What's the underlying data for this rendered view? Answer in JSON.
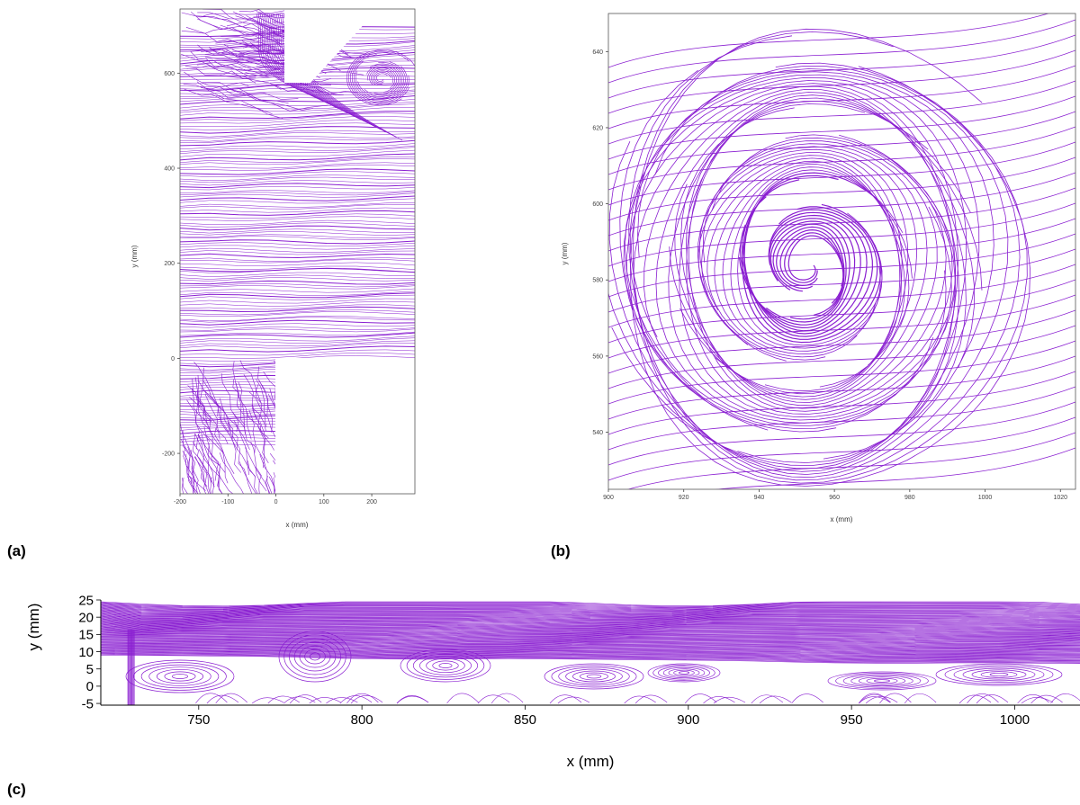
{
  "figure": {
    "line_color": "#8a1fd1",
    "panels": {
      "a": "(a)",
      "b": "(b)",
      "c": "(c)"
    }
  },
  "chart_data": [
    {
      "id": "a",
      "type": "streamline",
      "xlabel": "x (mm)",
      "ylabel": "y (mm)",
      "xlim": [
        -200,
        290
      ],
      "ylim": [
        -285,
        735
      ],
      "xticks": [
        -200,
        -100,
        0,
        100,
        200
      ],
      "yticks": [
        -200,
        0,
        200,
        400,
        600
      ],
      "grid": false
    },
    {
      "id": "b",
      "type": "streamline",
      "xlabel": "x (mm)",
      "ylabel": "y (mm)",
      "xlim": [
        900,
        1024
      ],
      "ylim": [
        525,
        650
      ],
      "xticks": [
        900,
        920,
        940,
        960,
        980,
        1000,
        1020
      ],
      "yticks": [
        540,
        560,
        580,
        600,
        620,
        640
      ],
      "vortex_center": [
        952,
        584
      ],
      "grid": false
    },
    {
      "id": "c",
      "type": "streamline",
      "xlabel": "x (mm)",
      "ylabel": "y (mm)",
      "xlim": [
        720,
        1020
      ],
      "ylim": [
        -5.5,
        25
      ],
      "xticks": [
        750,
        800,
        850,
        900,
        950,
        1000
      ],
      "yticks": [
        25,
        20,
        15,
        10,
        5,
        0,
        -5
      ],
      "grid": false
    }
  ]
}
